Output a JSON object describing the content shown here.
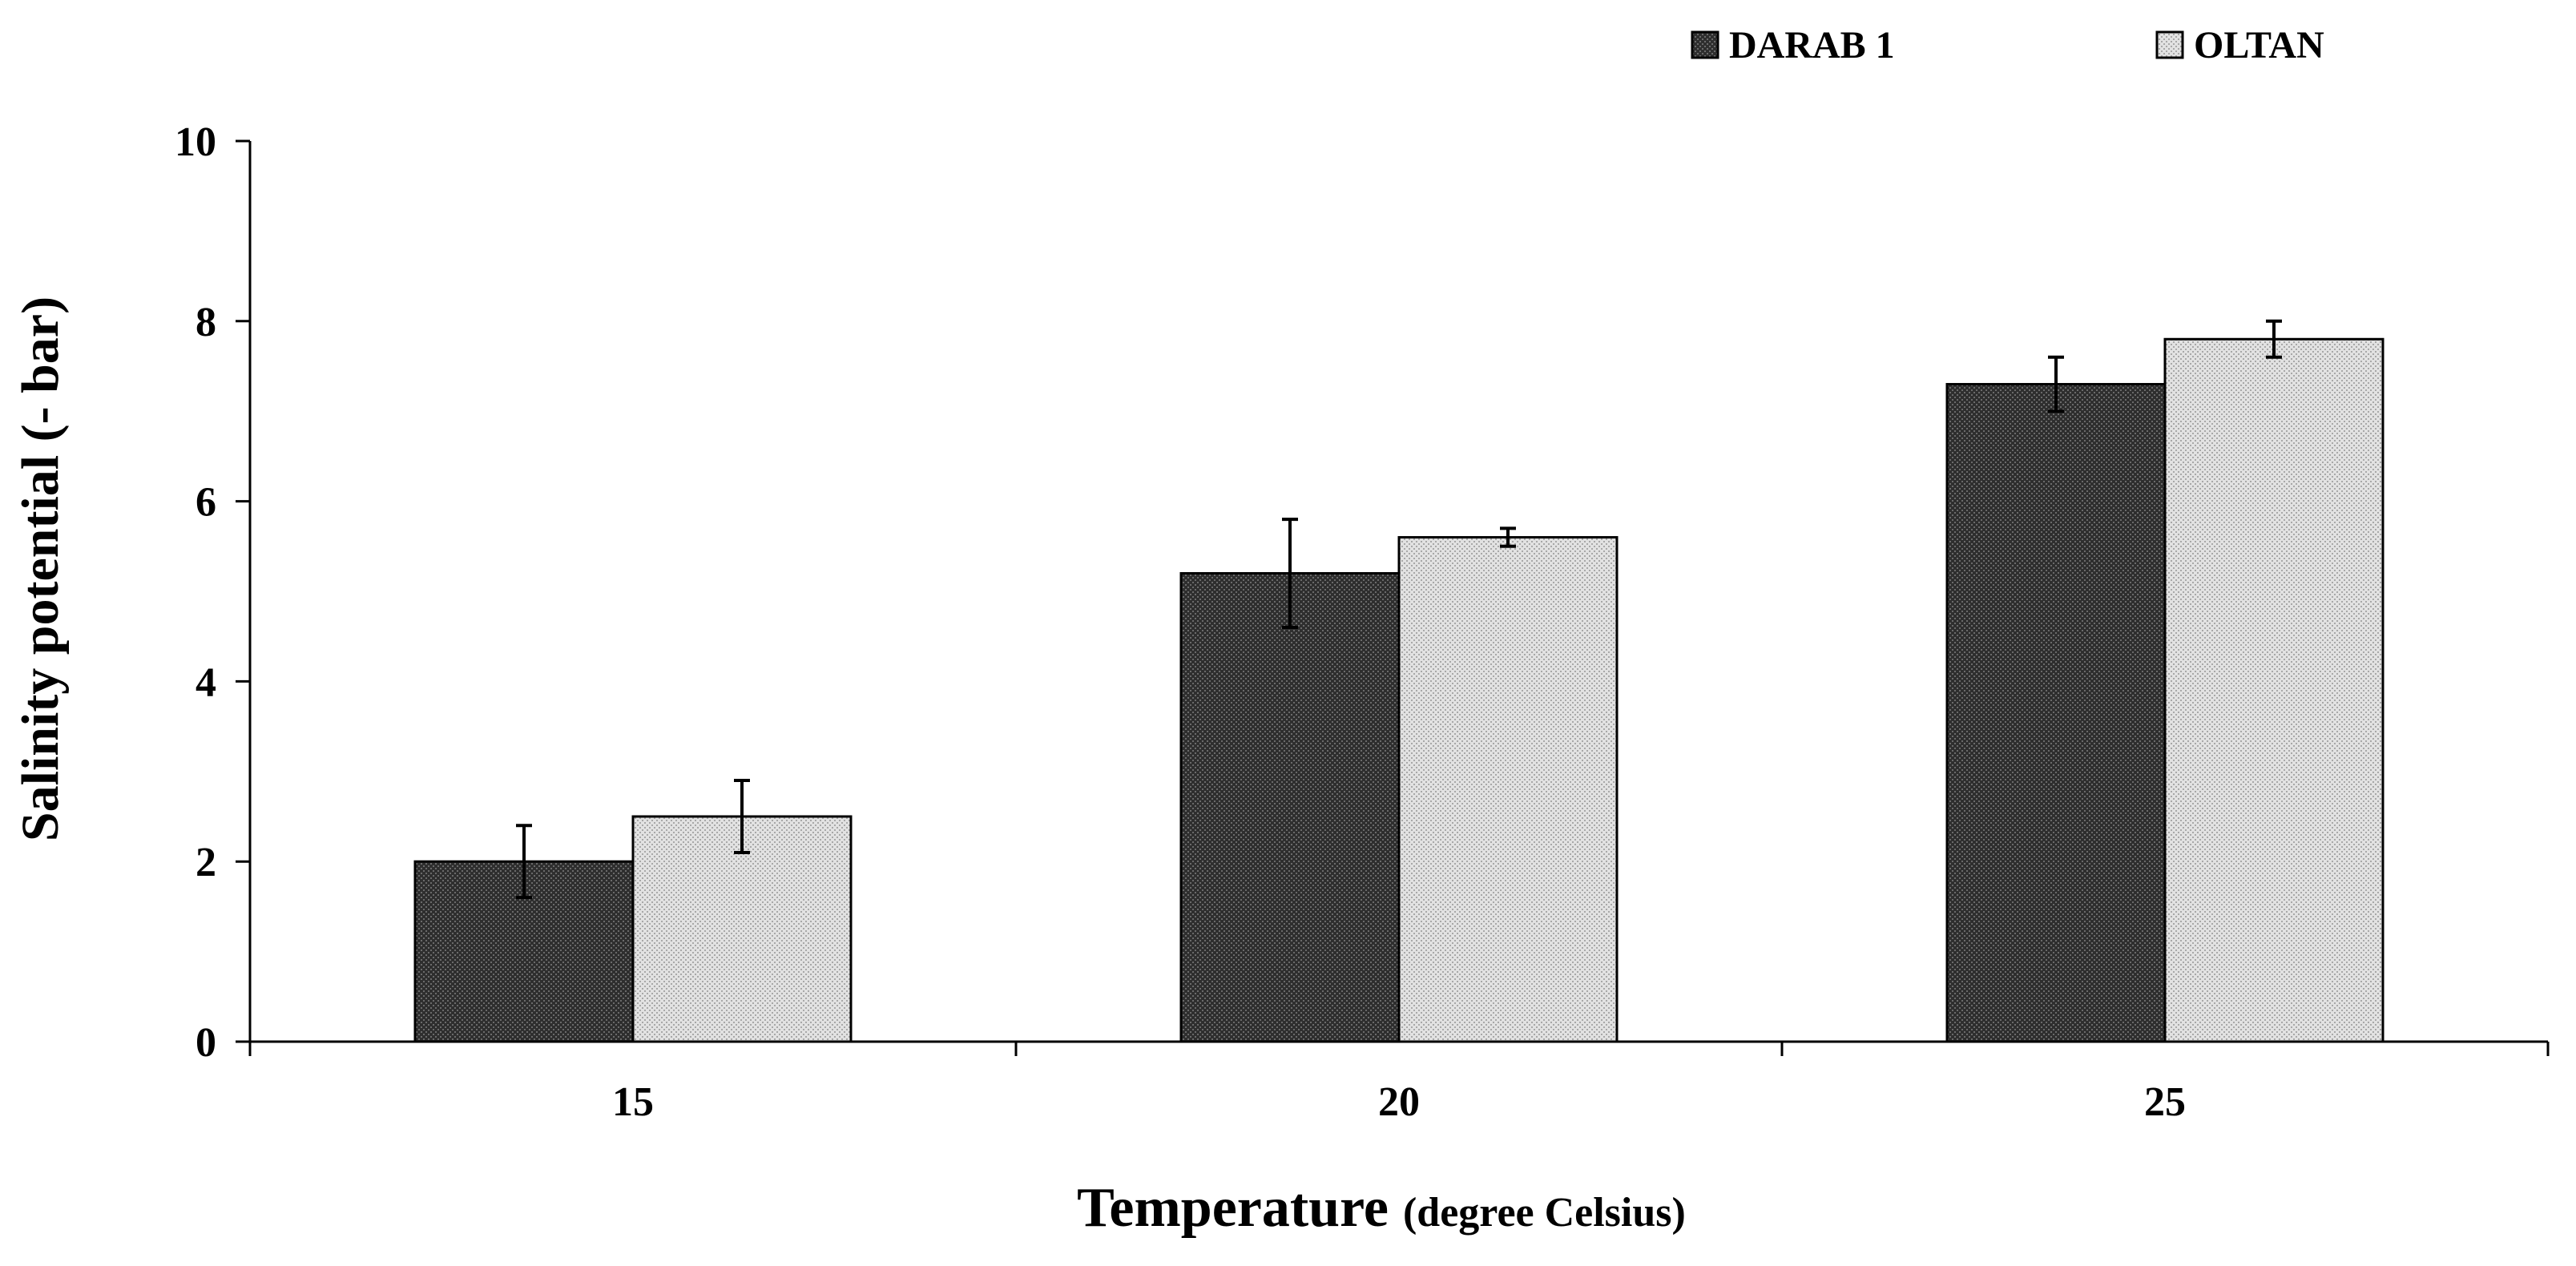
{
  "chart_data": {
    "type": "bar",
    "title": "",
    "categories": [
      "15",
      "20",
      "25"
    ],
    "series": [
      {
        "name": "DARAB 1",
        "values": [
          2.0,
          5.2,
          7.3
        ],
        "errors": [
          0.4,
          0.6,
          0.3
        ],
        "color": "#3a3a3a"
      },
      {
        "name": "OLTAN",
        "values": [
          2.5,
          5.6,
          7.8
        ],
        "errors": [
          0.4,
          0.1,
          0.2
        ],
        "color": "#d4d4d4"
      }
    ],
    "ylabel": "Salinity potential  (- bar)",
    "xlabel": {
      "main": "Temperature",
      "unit": "(degree Celsius)"
    },
    "ylim": [
      0,
      10
    ],
    "yticks": [
      "0",
      "2",
      "4",
      "6",
      "8",
      "10"
    ],
    "grid": false,
    "legend": "top-right",
    "error_bars": true
  }
}
